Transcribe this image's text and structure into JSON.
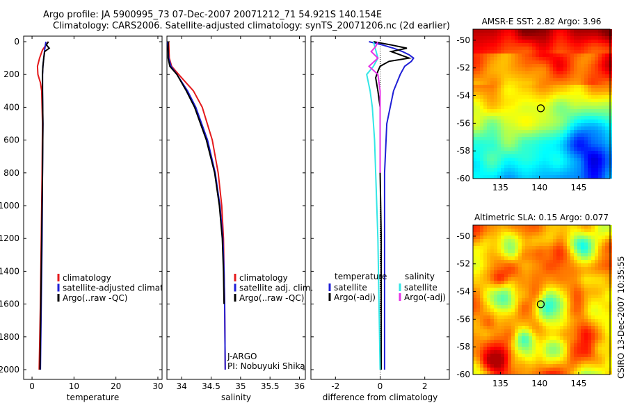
{
  "title": {
    "line1": "Argo profile: JA 5900995_73 07-Dec-2007 20071212_71 54.921S 140.154E",
    "line2": "Climatology: CARS2006. Satellite-adjusted climatology: synTS_20071206.nc (2d earlier)"
  },
  "colors": {
    "red": "#e41a1c",
    "blue": "#1f1fd6",
    "black": "#000000",
    "cyan": "#33e6e6",
    "magenta": "#e633e6"
  },
  "chart_data": [
    {
      "id": "temperature",
      "type": "line",
      "xlabel": "temperature",
      "ylabel": "",
      "xlim": [
        -2,
        31
      ],
      "ylim": [
        2050,
        0
      ],
      "xticks": [
        0,
        10,
        20,
        30
      ],
      "yticks": [
        0,
        200,
        400,
        600,
        800,
        1000,
        1200,
        1400,
        1600,
        1800,
        2000
      ],
      "legend": [
        "climatology",
        "satellite-adjusted climatology",
        "Argo(..raw -QC)"
      ],
      "series": [
        {
          "name": "climatology",
          "color": "red",
          "depth": [
            0,
            50,
            100,
            150,
            200,
            250,
            300,
            500,
            800,
            1200,
            1600,
            2000
          ],
          "values": [
            3.9,
            2.5,
            1.8,
            1.3,
            1.4,
            2.0,
            2.3,
            2.5,
            2.4,
            2.2,
            2.0,
            1.7
          ]
        },
        {
          "name": "satellite-adjusted climatology",
          "color": "blue",
          "depth": [
            0,
            50,
            100,
            150,
            200,
            300,
            500,
            800,
            1200,
            1600,
            2000
          ],
          "values": [
            3.3,
            3.0,
            2.8,
            2.6,
            2.5,
            2.5,
            2.6,
            2.5,
            2.4,
            2.2,
            2.0
          ]
        },
        {
          "name": "Argo(..raw -QC)",
          "color": "black",
          "depth": [
            0,
            20,
            40,
            60,
            100,
            150,
            200,
            300,
            500,
            800,
            1200,
            1600,
            2000
          ],
          "values": [
            3.9,
            3.4,
            4.1,
            3.0,
            2.8,
            2.6,
            2.5,
            2.5,
            2.6,
            2.5,
            2.3,
            2.1,
            1.9
          ]
        }
      ]
    },
    {
      "id": "salinity",
      "type": "line",
      "xlabel": "salinity",
      "xlim": [
        33.75,
        36.1
      ],
      "ylim": [
        2050,
        0
      ],
      "xticks": [
        34,
        34.5,
        35,
        35.5,
        36
      ],
      "legend": [
        "climatology",
        "satellite adj. clim.",
        "Argo(..raw -QC)"
      ],
      "annotation": [
        "J-ARGO",
        "PI: Nobuyuki Shikama"
      ],
      "series": [
        {
          "name": "climatology",
          "color": "red",
          "depth": [
            0,
            100,
            150,
            200,
            300,
            400,
            600,
            800,
            1000,
            1200,
            1400,
            1600,
            2000
          ],
          "values": [
            33.78,
            33.79,
            33.83,
            33.95,
            34.2,
            34.35,
            34.52,
            34.62,
            34.68,
            34.71,
            34.72,
            34.73,
            34.74
          ]
        },
        {
          "name": "satellite adj. clim.",
          "color": "blue",
          "depth": [
            0,
            100,
            150,
            200,
            300,
            400,
            600,
            800,
            1000,
            1200,
            1400,
            1600,
            2000
          ],
          "values": [
            33.76,
            33.78,
            33.82,
            33.92,
            34.1,
            34.24,
            34.44,
            34.57,
            34.65,
            34.7,
            34.72,
            34.73,
            34.74
          ]
        },
        {
          "name": "Argo(..raw -QC)",
          "color": "black",
          "depth": [
            0,
            100,
            150,
            200,
            300,
            400,
            600,
            800,
            1000,
            1200,
            1400,
            1600
          ],
          "values": [
            33.77,
            33.77,
            33.8,
            33.92,
            34.08,
            34.22,
            34.42,
            34.56,
            34.64,
            34.69,
            34.71,
            34.72
          ]
        }
      ]
    },
    {
      "id": "difference",
      "type": "line",
      "xlabel": "difference from climatology",
      "xlim": [
        -3.1,
        3.1
      ],
      "ylim": [
        2050,
        0
      ],
      "xticks": [
        -2,
        0,
        2
      ],
      "legend_left": {
        "title": "temperature",
        "items": [
          "satellite",
          "Argo(-adj)"
        ]
      },
      "legend_right": {
        "title": "salinity",
        "items": [
          "satellite",
          "Argo(-adj)"
        ]
      },
      "series": [
        {
          "name": "temperature satellite",
          "color": "blue",
          "depth": [
            0,
            20,
            40,
            60,
            80,
            100,
            120,
            150,
            200,
            300,
            500,
            800,
            1200,
            1600,
            2000
          ],
          "values": [
            -0.5,
            0.1,
            0.6,
            1.0,
            1.3,
            1.5,
            1.4,
            1.1,
            0.9,
            0.6,
            0.3,
            0.2,
            0.2,
            0.2,
            0.2
          ]
        },
        {
          "name": "temperature Argo(-adj)",
          "color": "black",
          "depth": [
            0,
            20,
            40,
            60,
            80,
            100,
            120,
            150,
            180,
            220,
            300,
            400,
            600,
            800,
            1200,
            1600,
            2000
          ],
          "values": [
            -0.3,
            0.5,
            1.2,
            0.5,
            0.9,
            1.3,
            0.4,
            0.0,
            -0.1,
            -0.2,
            -0.1,
            0.0,
            0.0,
            0.0,
            0.05,
            0.05,
            0.05
          ]
        },
        {
          "name": "salinity satellite",
          "color": "cyan",
          "depth": [
            0,
            50,
            100,
            150,
            200,
            300,
            400,
            600,
            800,
            1000,
            1200,
            1600,
            2000
          ],
          "values": [
            -0.3,
            -0.2,
            -0.1,
            -0.3,
            -0.6,
            -0.45,
            -0.35,
            -0.25,
            -0.2,
            -0.15,
            -0.1,
            -0.05,
            0.0
          ]
        },
        {
          "name": "salinity Argo(-adj)",
          "color": "magenta",
          "depth": [
            0,
            30,
            60,
            100,
            150,
            200,
            300,
            400,
            600,
            800
          ],
          "values": [
            -0.1,
            -0.2,
            -0.4,
            -0.1,
            -0.5,
            -0.1,
            0.0,
            0.0,
            0.0,
            0.0
          ]
        }
      ]
    },
    {
      "id": "sst_map",
      "type": "heatmap",
      "title": "AMSR-E SST: 2.82  Argo: 3.96",
      "xticks": [
        135,
        140,
        145
      ],
      "yticks": [
        -50,
        -52,
        -54,
        -56,
        -58,
        -60
      ],
      "xlim": [
        131.5,
        149
      ],
      "ylim": [
        -60,
        -49.2
      ],
      "marker": {
        "lon": 140.154,
        "lat": -54.921
      }
    },
    {
      "id": "sla_map",
      "type": "heatmap",
      "title": "Altimetric SLA: 0.15  Argo: 0.077",
      "xticks": [
        135,
        140,
        145
      ],
      "yticks": [
        -50,
        -52,
        -54,
        -56,
        -58,
        -60
      ],
      "xlim": [
        131.5,
        149
      ],
      "ylim": [
        -60,
        -49.2
      ],
      "marker": {
        "lon": 140.154,
        "lat": -54.921
      }
    }
  ],
  "footer": "CSIRO 13-Dec-2007 10:35:55"
}
